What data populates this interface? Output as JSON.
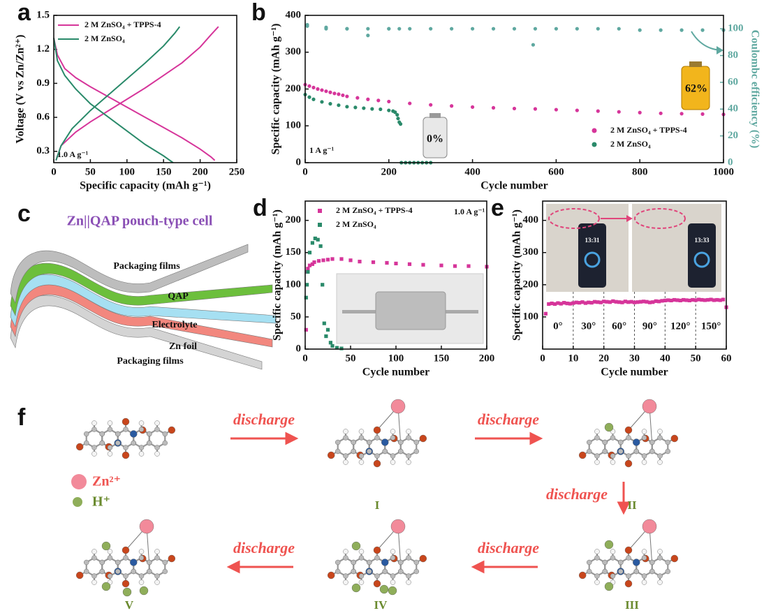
{
  "chart_data": [
    {
      "type": "line",
      "panel_label": "a",
      "xlabel": "Specific capacity (mAh g⁻¹)",
      "ylabel": "Voltage (V vs Zn/Zn²⁺)",
      "annotations": [
        "1.0 A g⁻¹"
      ],
      "legend_position": "upper left",
      "xlim": [
        0,
        250
      ],
      "xticks": [
        0,
        50,
        100,
        150,
        200,
        250
      ],
      "ylim": [
        0.2,
        1.5
      ],
      "yticks": [
        0.3,
        0.6,
        0.9,
        1.2,
        1.5
      ],
      "series": [
        {
          "name": "2 M ZnSO₄ + TPPS-4",
          "color": "#d6359a",
          "x": [
            0,
            5,
            15,
            30,
            50,
            75,
            100,
            125,
            150,
            175,
            200,
            215,
            220,
            null,
            3,
            10,
            30,
            50,
            75,
            100,
            125,
            150,
            175,
            200,
            215,
            225
          ],
          "values": [
            1.3,
            1.15,
            1.03,
            0.95,
            0.87,
            0.78,
            0.69,
            0.6,
            0.51,
            0.42,
            0.32,
            0.25,
            0.22,
            null,
            0.22,
            0.35,
            0.47,
            0.56,
            0.66,
            0.76,
            0.86,
            0.97,
            1.08,
            1.22,
            1.33,
            1.4
          ]
        },
        {
          "name": "2 M ZnSO₄",
          "color": "#2a8a6a",
          "x": [
            0,
            5,
            15,
            30,
            50,
            75,
            100,
            125,
            150,
            163,
            null,
            3,
            10,
            25,
            50,
            75,
            100,
            125,
            150,
            165,
            172
          ],
          "values": [
            1.3,
            1.1,
            0.97,
            0.85,
            0.72,
            0.6,
            0.48,
            0.36,
            0.26,
            0.2,
            null,
            0.22,
            0.35,
            0.5,
            0.66,
            0.8,
            0.94,
            1.08,
            1.23,
            1.34,
            1.4
          ]
        }
      ]
    },
    {
      "type": "scatter",
      "panel_label": "b",
      "xlabel": "Cycle number",
      "ylabel": "Specific capacity (mAh g⁻¹)",
      "y2label": "Coulombc efficiency (%)",
      "annotations": [
        "1 A g⁻¹",
        "0%",
        "62%"
      ],
      "legend_position": "lower right",
      "xlim": [
        0,
        1000
      ],
      "xticks": [
        0,
        200,
        400,
        600,
        800,
        1000
      ],
      "ylim": [
        0,
        400
      ],
      "yticks": [
        0,
        100,
        200,
        300,
        400
      ],
      "y2lim": [
        0,
        110
      ],
      "y2ticks": [
        0,
        20,
        40,
        60,
        80,
        100
      ],
      "series": [
        {
          "name": "2 M ZnSO₄ + TPPS-4",
          "color": "#d6359a",
          "x": [
            0,
            10,
            20,
            30,
            40,
            50,
            60,
            70,
            80,
            90,
            100,
            125,
            150,
            175,
            200,
            250,
            300,
            350,
            400,
            450,
            500,
            550,
            600,
            650,
            700,
            750,
            800,
            850,
            900,
            950,
            1000
          ],
          "values": [
            212,
            208,
            204,
            200,
            197,
            194,
            191,
            188,
            186,
            183,
            180,
            176,
            172,
            169,
            166,
            161,
            157,
            154,
            151,
            149,
            147,
            146,
            144,
            142,
            140,
            138,
            136,
            134,
            133,
            132,
            131
          ]
        },
        {
          "name": "2 M ZnSO₄",
          "color": "#2a8a6a",
          "x": [
            0,
            10,
            20,
            40,
            60,
            80,
            100,
            120,
            140,
            160,
            180,
            200,
            210,
            215,
            220,
            222,
            225,
            228,
            230,
            240,
            250,
            260,
            270,
            280,
            290,
            300
          ],
          "values": [
            185,
            178,
            172,
            165,
            160,
            156,
            152,
            150,
            148,
            146,
            145,
            142,
            140,
            137,
            130,
            120,
            110,
            105,
            0,
            0,
            0,
            0,
            0,
            0,
            0,
            0
          ]
        },
        {
          "color": "#5fa8a0",
          "axis": "y2",
          "x": [
            5,
            50,
            100,
            150,
            200,
            250,
            300,
            350,
            400,
            450,
            500,
            545,
            550,
            600,
            650,
            700,
            750,
            800,
            850,
            900,
            950,
            1000
          ],
          "values": [
            103,
            101,
            100,
            100,
            100,
            100,
            100,
            100,
            100,
            100,
            100,
            88,
            100,
            100,
            100,
            100,
            100,
            99,
            99,
            99,
            99,
            99
          ]
        },
        {
          "color": "#5fa8a0",
          "axis": "y2",
          "x": [
            5,
            50,
            100,
            150,
            200,
            225
          ],
          "values": [
            102,
            100,
            100,
            95,
            100,
            100
          ]
        }
      ]
    },
    {
      "type": "scatter",
      "panel_label": "d",
      "xlabel": "Cycle number",
      "ylabel": "Specific capacity (mAh g⁻¹)",
      "annotations": [
        "1.0 A g⁻¹"
      ],
      "legend_position": "upper left",
      "marker": "square",
      "xlim": [
        0,
        200
      ],
      "xticks": [
        0,
        50,
        100,
        150,
        200
      ],
      "ylim": [
        0,
        230
      ],
      "yticks": [
        0,
        50,
        100,
        150,
        200
      ],
      "series": [
        {
          "name": "2 M ZnSO₄ + TPPS-4",
          "color": "#d6359a",
          "x": [
            1,
            2,
            3,
            5,
            8,
            10,
            15,
            20,
            25,
            30,
            40,
            50,
            60,
            75,
            90,
            100,
            115,
            130,
            150,
            165,
            180,
            200
          ],
          "values": [
            30,
            120,
            125,
            130,
            132,
            135,
            137,
            138,
            139,
            140,
            140,
            138,
            136,
            135,
            134,
            133,
            132,
            131,
            130,
            129,
            129,
            128
          ]
        },
        {
          "name": "2 M ZnSO₄",
          "color": "#2a8a6a",
          "x": [
            1,
            2,
            3,
            5,
            8,
            11,
            14,
            17,
            19,
            21,
            23,
            25,
            28,
            30,
            35,
            40
          ],
          "values": [
            80,
            100,
            120,
            150,
            165,
            172,
            170,
            160,
            100,
            40,
            20,
            30,
            10,
            5,
            2,
            1
          ]
        }
      ]
    },
    {
      "type": "scatter",
      "panel_label": "e",
      "xlabel": "Cycle number",
      "ylabel": "Specific capacity (mAh g⁻¹)",
      "marker": "square",
      "xlim": [
        0,
        60
      ],
      "xticks": [
        0,
        10,
        20,
        30,
        40,
        50,
        60
      ],
      "ylim": [
        0,
        460
      ],
      "yticks": [
        100,
        200,
        300,
        400
      ],
      "dividers": [
        10,
        20,
        30,
        40,
        50
      ],
      "segment_labels": [
        "0°",
        "30°",
        "60°",
        "90°",
        "120°",
        "150°"
      ],
      "photo_texts": [
        "13:31",
        "13:33"
      ],
      "series": [
        {
          "color": "#d6359a",
          "x": [
            1,
            2,
            3,
            4,
            5,
            6,
            7,
            8,
            9,
            10,
            11,
            12,
            13,
            14,
            15,
            16,
            17,
            18,
            19,
            20,
            21,
            22,
            23,
            24,
            25,
            26,
            27,
            28,
            29,
            30,
            31,
            32,
            33,
            34,
            35,
            36,
            37,
            38,
            39,
            40,
            41,
            42,
            43,
            44,
            45,
            46,
            47,
            48,
            49,
            50,
            51,
            52,
            53,
            54,
            55,
            56,
            57,
            58,
            59,
            60
          ],
          "values": [
            110,
            140,
            142,
            140,
            143,
            141,
            144,
            142,
            141,
            143,
            145,
            144,
            146,
            143,
            145,
            144,
            147,
            146,
            145,
            148,
            147,
            146,
            149,
            147,
            146,
            145,
            148,
            146,
            147,
            145,
            146,
            147,
            148,
            147,
            145,
            146,
            149,
            148,
            150,
            151,
            152,
            151,
            153,
            152,
            151,
            153,
            152,
            151,
            153,
            152,
            154,
            153,
            152,
            153,
            154,
            152,
            153,
            152,
            154,
            130
          ]
        }
      ]
    }
  ],
  "diagram": {
    "panel_label": "c",
    "title": "Zn||QAP pouch-type cell",
    "layers": [
      "Packaging films",
      "QAP",
      "Electrolyte",
      "Zn foil",
      "Packaging films"
    ]
  },
  "scheme": {
    "panel_label": "f",
    "arrow_labels": [
      "discharge",
      "discharge",
      "discharge",
      "discharge",
      "discharge"
    ],
    "legend": [
      "Zn²⁺",
      "H⁺"
    ],
    "states": [
      "I",
      "II",
      "III",
      "IV",
      "V"
    ]
  }
}
